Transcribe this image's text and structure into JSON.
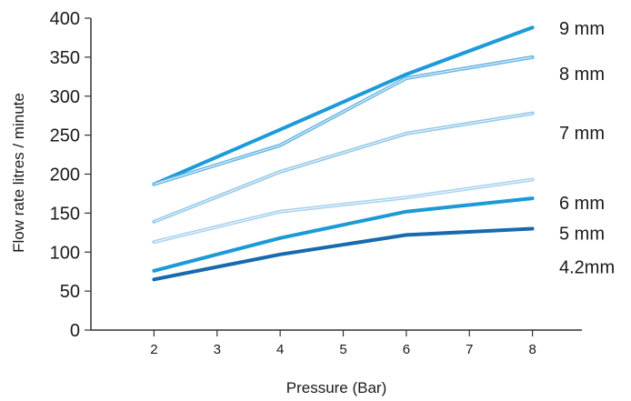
{
  "chart_data": {
    "type": "line",
    "title": "",
    "xlabel": "Pressure (Bar)",
    "ylabel": "Flow rate litres / minute",
    "xlim": [
      1,
      9
    ],
    "ylim": [
      0,
      400
    ],
    "xticks": [
      2,
      3,
      4,
      5,
      6,
      7,
      8
    ],
    "yticks": [
      0,
      50,
      100,
      150,
      200,
      250,
      300,
      350,
      400
    ],
    "grid": false,
    "legend": "inline-right",
    "x": [
      2,
      4,
      6,
      8
    ],
    "series": [
      {
        "name": "9 mm",
        "values": [
          187,
          257,
          328,
          388
        ],
        "color": "#1d9ad8"
      },
      {
        "name": "8 mm",
        "values": [
          187,
          237,
          323,
          350
        ],
        "color": "#6ab7e3",
        "double": true
      },
      {
        "name": "7 mm",
        "values": [
          139,
          203,
          252,
          278
        ],
        "color": "#93c8ea",
        "double": true
      },
      {
        "name": "6 mm",
        "values": [
          113,
          152,
          170,
          193
        ],
        "color": "#a8d3ef",
        "double": true
      },
      {
        "name": "5 mm",
        "values": [
          76,
          118,
          152,
          169
        ],
        "color": "#1b9ad6"
      },
      {
        "name": "4.2mm",
        "values": [
          65,
          97,
          122,
          130
        ],
        "color": "#1869ad"
      }
    ],
    "label_y": [
      387,
      329,
      253,
      163,
      124,
      81
    ]
  }
}
